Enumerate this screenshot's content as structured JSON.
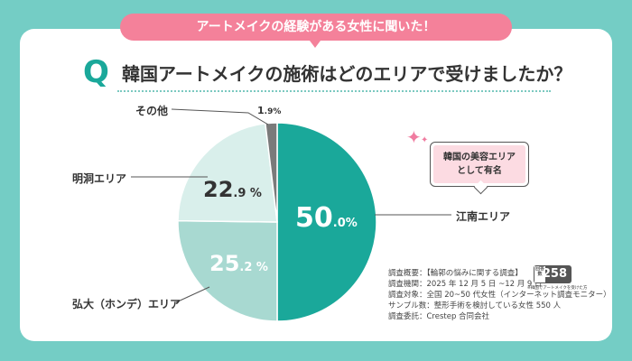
{
  "banner": "アートメイクの経験がある女性に聞いた！",
  "question": {
    "mark": "Q",
    "text": "韓国アートメイクの施術はどのエリアで受けましたか？"
  },
  "chart_data": {
    "type": "pie",
    "title": "韓国アートメイクの施術はどのエリアで受けましたか？",
    "categories": [
      "江南エリア",
      "弘大（ホンデ）エリア",
      "明洞エリア",
      "その他"
    ],
    "values": [
      50.0,
      25.2,
      22.9,
      1.9
    ],
    "value_labels": [
      {
        "main": "50",
        "dec": ".0%"
      },
      {
        "main": "25",
        "dec": ".2 %"
      },
      {
        "main": "22",
        "dec": ".9 %"
      },
      {
        "main": "1",
        "dec": ".9%"
      }
    ],
    "colors": [
      "#1aa89a",
      "#a8d9d1",
      "#d9efeb",
      "#7a7a7a"
    ],
    "start": "top",
    "direction": "clockwise"
  },
  "callout": {
    "line1": "韓国の美容エリア",
    "line2": "として有名"
  },
  "survey": {
    "lines": [
      "調査概要：【輪郭の悩みに関する調査】",
      "調査機関：2025 年 12 月 5 日 ~12 月 9 日",
      "調査対象：全国 20~50 代女性（インターネット調査モニター）",
      "サンプル数：整形手術を検討している女性 550 人",
      "調査委託：Crestep 合同会社"
    ],
    "badge_label": "回答数",
    "badge_value": "258",
    "badge_note": "※韓国でアートメイクを受けた方"
  }
}
